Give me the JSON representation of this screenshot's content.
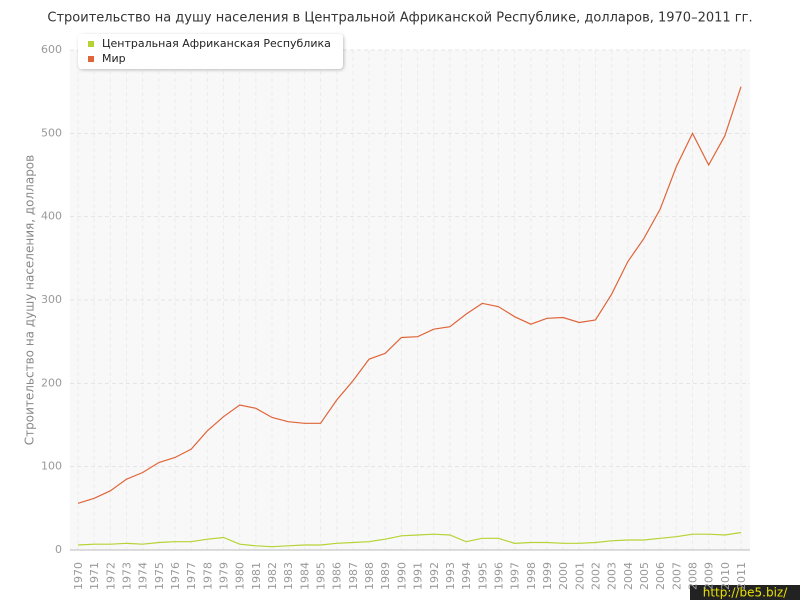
{
  "chart_data": {
    "type": "line",
    "title": "Строительство на душу населения в Центральной Африканской Республике, долларов, 1970–2011 гг.",
    "y_label": "Строительство на душу населения, долларов",
    "watermark": "http://be5.biz/",
    "categories": [
      "1970",
      "1971",
      "1972",
      "1973",
      "1974",
      "1975",
      "1976",
      "1977",
      "1978",
      "1979",
      "1980",
      "1981",
      "1982",
      "1983",
      "1984",
      "1985",
      "1986",
      "1987",
      "1988",
      "1989",
      "1990",
      "1991",
      "1992",
      "1993",
      "1994",
      "1995",
      "1996",
      "1997",
      "1998",
      "1999",
      "2000",
      "2001",
      "2002",
      "2003",
      "2004",
      "2005",
      "2006",
      "2007",
      "2008",
      "2009",
      "2010",
      "2011"
    ],
    "series": [
      {
        "name": "Центральная Африканская Республика",
        "color": "#b5d334",
        "values": [
          6,
          7,
          7,
          8,
          7,
          9,
          10,
          10,
          13,
          15,
          7,
          5,
          4,
          5,
          6,
          6,
          8,
          9,
          10,
          13,
          17,
          18,
          19,
          18,
          10,
          14,
          14,
          8,
          9,
          9,
          8,
          8,
          9,
          11,
          12,
          12,
          14,
          16,
          19,
          19,
          18,
          21
        ]
      },
      {
        "name": "Мир",
        "color": "#e0643a",
        "values": [
          56,
          62,
          71,
          85,
          93,
          105,
          111,
          121,
          143,
          160,
          174,
          170,
          159,
          154,
          152,
          152,
          180,
          203,
          229,
          236,
          255,
          256,
          265,
          268,
          283,
          296,
          292,
          280,
          271,
          278,
          279,
          273,
          276,
          307,
          346,
          374,
          409,
          460,
          500,
          462,
          497,
          556
        ]
      }
    ],
    "ylim": [
      0,
      600
    ],
    "yticks": [
      0,
      100,
      200,
      300,
      400,
      500,
      600
    ],
    "grid": true,
    "legend": "top-left"
  }
}
